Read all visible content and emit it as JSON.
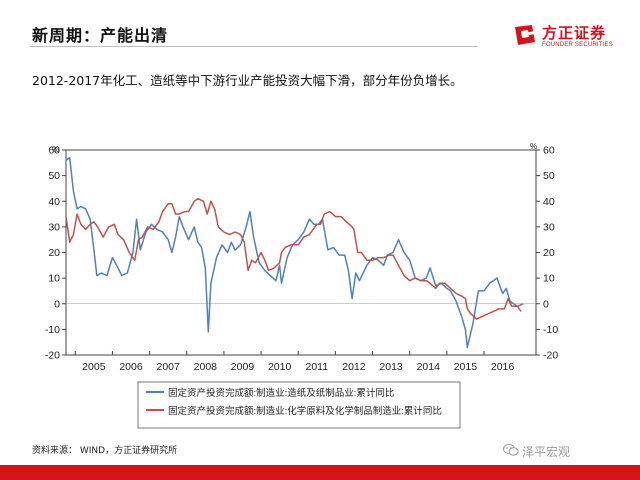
{
  "slide": {
    "title": "新周期：产能出清",
    "subtitle": "2012-2017年化工、造纸等中下游行业产能投资大幅下滑，部分年份负增长。",
    "source": "资料来源： WIND，方正证券研究所",
    "watermark": "泽平宏观"
  },
  "logo": {
    "cn": "方正证券",
    "en": "FOUNDER SECURITIES",
    "brand_color": "#d4131b"
  },
  "chart_data": {
    "type": "line",
    "title": "",
    "unit_left": "%",
    "unit_right": "%",
    "ylim": [
      -20,
      60
    ],
    "yticks": [
      -20,
      -10,
      0,
      10,
      20,
      30,
      40,
      50,
      60
    ],
    "xlim": [
      2004.25,
      2016.9
    ],
    "xticks": [
      {
        "label": "2005",
        "x": 2005.0
      },
      {
        "label": "2006",
        "x": 2006.0
      },
      {
        "label": "2007",
        "x": 2007.0
      },
      {
        "label": "2008",
        "x": 2008.0
      },
      {
        "label": "2009",
        "x": 2009.0
      },
      {
        "label": "2010",
        "x": 2010.0
      },
      {
        "label": "2011",
        "x": 2011.0
      },
      {
        "label": "2012",
        "x": 2012.0
      },
      {
        "label": "2013",
        "x": 2013.0
      },
      {
        "label": "2014",
        "x": 2014.0
      },
      {
        "label": "2015",
        "x": 2015.0
      },
      {
        "label": "2016",
        "x": 2016.0
      }
    ],
    "series": [
      {
        "name": "固定资产投资完成额:制造业:造纸及纸制品业:累计同比",
        "color": "#4f81bd",
        "points": [
          [
            2004.25,
            56
          ],
          [
            2004.35,
            57
          ],
          [
            2004.45,
            44
          ],
          [
            2004.55,
            37
          ],
          [
            2004.65,
            38
          ],
          [
            2004.78,
            37
          ],
          [
            2004.9,
            33
          ],
          [
            2005.0,
            21
          ],
          [
            2005.08,
            11
          ],
          [
            2005.2,
            12
          ],
          [
            2005.35,
            11
          ],
          [
            2005.5,
            18
          ],
          [
            2005.65,
            14
          ],
          [
            2005.75,
            11
          ],
          [
            2005.9,
            12
          ],
          [
            2006.05,
            20
          ],
          [
            2006.15,
            33
          ],
          [
            2006.25,
            21
          ],
          [
            2006.4,
            28
          ],
          [
            2006.55,
            31
          ],
          [
            2006.7,
            29
          ],
          [
            2006.85,
            28
          ],
          [
            2007.0,
            25
          ],
          [
            2007.1,
            20
          ],
          [
            2007.2,
            26
          ],
          [
            2007.3,
            34
          ],
          [
            2007.4,
            30
          ],
          [
            2007.55,
            25
          ],
          [
            2007.7,
            30
          ],
          [
            2007.8,
            24
          ],
          [
            2007.9,
            22
          ],
          [
            2008.0,
            14
          ],
          [
            2008.08,
            -11
          ],
          [
            2008.15,
            8
          ],
          [
            2008.3,
            18
          ],
          [
            2008.45,
            23
          ],
          [
            2008.6,
            20
          ],
          [
            2008.7,
            24
          ],
          [
            2008.8,
            21
          ],
          [
            2008.95,
            23
          ],
          [
            2009.1,
            30
          ],
          [
            2009.2,
            36
          ],
          [
            2009.3,
            26
          ],
          [
            2009.45,
            16
          ],
          [
            2009.6,
            13
          ],
          [
            2009.75,
            11
          ],
          [
            2009.9,
            9
          ],
          [
            2010.0,
            15
          ],
          [
            2010.05,
            8
          ],
          [
            2010.2,
            18
          ],
          [
            2010.35,
            23
          ],
          [
            2010.5,
            25
          ],
          [
            2010.65,
            28
          ],
          [
            2010.8,
            33
          ],
          [
            2010.92,
            31
          ],
          [
            2011.05,
            31
          ],
          [
            2011.15,
            33
          ],
          [
            2011.3,
            21
          ],
          [
            2011.45,
            22
          ],
          [
            2011.6,
            19
          ],
          [
            2011.75,
            19
          ],
          [
            2011.85,
            13
          ],
          [
            2011.95,
            2
          ],
          [
            2012.05,
            12
          ],
          [
            2012.15,
            9
          ],
          [
            2012.35,
            15
          ],
          [
            2012.5,
            18
          ],
          [
            2012.65,
            17
          ],
          [
            2012.8,
            15
          ],
          [
            2012.9,
            19
          ],
          [
            2013.05,
            20
          ],
          [
            2013.2,
            25
          ],
          [
            2013.35,
            20
          ],
          [
            2013.5,
            17
          ],
          [
            2013.65,
            10
          ],
          [
            2013.8,
            9
          ],
          [
            2013.95,
            10
          ],
          [
            2014.05,
            14
          ],
          [
            2014.2,
            7
          ],
          [
            2014.35,
            8
          ],
          [
            2014.5,
            6
          ],
          [
            2014.6,
            5
          ],
          [
            2014.75,
            1
          ],
          [
            2014.9,
            -5
          ],
          [
            2015.0,
            -10
          ],
          [
            2015.05,
            -17
          ],
          [
            2015.2,
            -8
          ],
          [
            2015.35,
            5
          ],
          [
            2015.5,
            5
          ],
          [
            2015.65,
            8
          ],
          [
            2015.75,
            9
          ],
          [
            2015.85,
            10
          ],
          [
            2016.0,
            4
          ],
          [
            2016.1,
            6
          ],
          [
            2016.2,
            1
          ],
          [
            2016.3,
            0
          ],
          [
            2016.4,
            -1
          ],
          [
            2016.5,
            -3
          ]
        ]
      },
      {
        "name": "固定资产投资完成额:制造业:化学原料及化学制品制造业:累计同比",
        "color": "#c0504d",
        "points": [
          [
            2004.25,
            34
          ],
          [
            2004.35,
            24
          ],
          [
            2004.45,
            27
          ],
          [
            2004.55,
            35
          ],
          [
            2004.65,
            31
          ],
          [
            2004.78,
            29
          ],
          [
            2004.9,
            31
          ],
          [
            2005.0,
            32
          ],
          [
            2005.1,
            30
          ],
          [
            2005.25,
            26
          ],
          [
            2005.4,
            30
          ],
          [
            2005.55,
            31
          ],
          [
            2005.65,
            27
          ],
          [
            2005.8,
            25
          ],
          [
            2005.95,
            20
          ],
          [
            2006.1,
            17
          ],
          [
            2006.2,
            25
          ],
          [
            2006.3,
            26
          ],
          [
            2006.45,
            30
          ],
          [
            2006.6,
            29
          ],
          [
            2006.75,
            32
          ],
          [
            2006.85,
            36
          ],
          [
            2007.0,
            39
          ],
          [
            2007.1,
            39
          ],
          [
            2007.2,
            35
          ],
          [
            2007.3,
            35
          ],
          [
            2007.45,
            36
          ],
          [
            2007.55,
            36
          ],
          [
            2007.7,
            40
          ],
          [
            2007.8,
            41
          ],
          [
            2007.95,
            40
          ],
          [
            2008.05,
            35
          ],
          [
            2008.15,
            40
          ],
          [
            2008.25,
            37
          ],
          [
            2008.35,
            30
          ],
          [
            2008.5,
            28
          ],
          [
            2008.65,
            27
          ],
          [
            2008.8,
            28
          ],
          [
            2008.95,
            27
          ],
          [
            2009.05,
            24
          ],
          [
            2009.15,
            13
          ],
          [
            2009.25,
            17
          ],
          [
            2009.35,
            16
          ],
          [
            2009.5,
            20
          ],
          [
            2009.6,
            17
          ],
          [
            2009.7,
            13
          ],
          [
            2009.85,
            14
          ],
          [
            2010.0,
            16
          ],
          [
            2010.05,
            20
          ],
          [
            2010.15,
            22
          ],
          [
            2010.3,
            23
          ],
          [
            2010.5,
            23
          ],
          [
            2010.65,
            26
          ],
          [
            2010.8,
            27
          ],
          [
            2011.0,
            31
          ],
          [
            2011.1,
            31
          ],
          [
            2011.2,
            35
          ],
          [
            2011.35,
            36
          ],
          [
            2011.5,
            34
          ],
          [
            2011.65,
            34
          ],
          [
            2011.8,
            32
          ],
          [
            2011.95,
            30
          ],
          [
            2012.0,
            29
          ],
          [
            2012.1,
            20
          ],
          [
            2012.2,
            20
          ],
          [
            2012.35,
            17
          ],
          [
            2012.5,
            17
          ],
          [
            2012.65,
            18
          ],
          [
            2012.8,
            18
          ],
          [
            2012.95,
            19
          ],
          [
            2013.05,
            19
          ],
          [
            2013.2,
            15
          ],
          [
            2013.35,
            11
          ],
          [
            2013.5,
            9
          ],
          [
            2013.65,
            10
          ],
          [
            2013.8,
            9
          ],
          [
            2013.95,
            9
          ],
          [
            2014.05,
            8
          ],
          [
            2014.2,
            6
          ],
          [
            2014.3,
            8
          ],
          [
            2014.45,
            8
          ],
          [
            2014.6,
            6
          ],
          [
            2014.75,
            4
          ],
          [
            2014.9,
            3
          ],
          [
            2015.0,
            2
          ],
          [
            2015.05,
            -2
          ],
          [
            2015.15,
            -4
          ],
          [
            2015.3,
            -6
          ],
          [
            2015.45,
            -5
          ],
          [
            2015.6,
            -4
          ],
          [
            2015.75,
            -3
          ],
          [
            2015.9,
            -2
          ],
          [
            2016.05,
            -2
          ],
          [
            2016.15,
            2
          ],
          [
            2016.25,
            -1
          ],
          [
            2016.4,
            -1
          ],
          [
            2016.55,
            0
          ]
        ]
      }
    ],
    "legend": "bottom-center"
  }
}
